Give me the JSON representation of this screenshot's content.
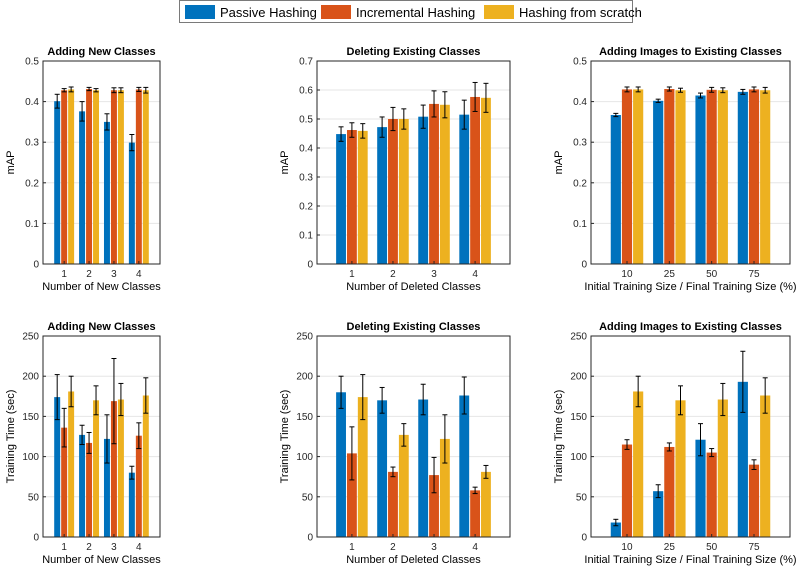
{
  "colors": {
    "passive": "#0072bd",
    "incremental": "#d95319",
    "scratch": "#edb120",
    "grid": "#e6e6e6",
    "axis": "#262626"
  },
  "legend": {
    "passive": "Passive Hashing",
    "incremental": "Incremental Hashing",
    "scratch": "Hashing from scratch"
  },
  "chart_data": [
    {
      "type": "bar",
      "title": "Adding New Classes",
      "xlabel": "Number of New Classes",
      "ylabel": "mAP",
      "categories": [
        "1",
        "2",
        "3",
        "4"
      ],
      "ylim": [
        0,
        0.5
      ],
      "yticks": [
        "0",
        "0.1",
        "0.2",
        "0.3",
        "0.4",
        "0.5"
      ],
      "grid": true,
      "series": [
        {
          "name": "Passive Hashing",
          "values": [
            0.401,
            0.376,
            0.35,
            0.299
          ],
          "errors": [
            0.017,
            0.024,
            0.02,
            0.02
          ]
        },
        {
          "name": "Incremental Hashing",
          "values": [
            0.428,
            0.431,
            0.428,
            0.43
          ],
          "errors": [
            0.004,
            0.004,
            0.006,
            0.005
          ]
        },
        {
          "name": "Hashing from scratch",
          "values": [
            0.43,
            0.428,
            0.428,
            0.428
          ],
          "errors": [
            0.006,
            0.004,
            0.006,
            0.007
          ]
        }
      ]
    },
    {
      "type": "bar",
      "title": "Deleting Existing Classes",
      "xlabel": "Number of Deleted Classes",
      "ylabel": "mAP",
      "categories": [
        "1",
        "2",
        "3",
        "4"
      ],
      "ylim": [
        0,
        0.7
      ],
      "yticks": [
        "0",
        "0.1",
        "0.2",
        "0.3",
        "0.4",
        "0.5",
        "0.6",
        "0.7"
      ],
      "grid": true,
      "series": [
        {
          "name": "Passive Hashing",
          "values": [
            0.448,
            0.472,
            0.508,
            0.515
          ],
          "errors": [
            0.025,
            0.035,
            0.04,
            0.05
          ]
        },
        {
          "name": "Incremental Hashing",
          "values": [
            0.462,
            0.5,
            0.552,
            0.576
          ],
          "errors": [
            0.025,
            0.04,
            0.045,
            0.05
          ]
        },
        {
          "name": "Hashing from scratch",
          "values": [
            0.459,
            0.5,
            0.549,
            0.573
          ],
          "errors": [
            0.025,
            0.035,
            0.045,
            0.05
          ]
        }
      ]
    },
    {
      "type": "bar",
      "title": "Adding Images to Existing Classes",
      "xlabel": "Initial Training Size / Final Training Size (%)",
      "ylabel": "mAP",
      "categories": [
        "10",
        "25",
        "50",
        "75"
      ],
      "ylim": [
        0,
        0.5
      ],
      "yticks": [
        "0",
        "0.1",
        "0.2",
        "0.3",
        "0.4",
        "0.5"
      ],
      "grid": true,
      "series": [
        {
          "name": "Passive Hashing",
          "values": [
            0.367,
            0.402,
            0.415,
            0.424
          ],
          "errors": [
            0.004,
            0.004,
            0.006,
            0.006
          ]
        },
        {
          "name": "Incremental Hashing",
          "values": [
            0.43,
            0.431,
            0.429,
            0.43
          ],
          "errors": [
            0.006,
            0.005,
            0.006,
            0.006
          ]
        },
        {
          "name": "Hashing from scratch",
          "values": [
            0.43,
            0.428,
            0.428,
            0.428
          ],
          "errors": [
            0.006,
            0.005,
            0.006,
            0.007
          ]
        }
      ]
    },
    {
      "type": "bar",
      "title": "Adding New Classes",
      "xlabel": "Number of New Classes",
      "ylabel": "Training Time (sec)",
      "categories": [
        "1",
        "2",
        "3",
        "4"
      ],
      "ylim": [
        0,
        250
      ],
      "yticks": [
        "0",
        "50",
        "100",
        "150",
        "200",
        "250"
      ],
      "grid": true,
      "series": [
        {
          "name": "Passive Hashing",
          "values": [
            174,
            127,
            122,
            80
          ],
          "errors": [
            28,
            12,
            30,
            8
          ]
        },
        {
          "name": "Incremental Hashing",
          "values": [
            136,
            117,
            169,
            126
          ],
          "errors": [
            24,
            13,
            53,
            16
          ]
        },
        {
          "name": "Hashing from scratch",
          "values": [
            181,
            170,
            171,
            176
          ],
          "errors": [
            19,
            18,
            20,
            22
          ]
        }
      ]
    },
    {
      "type": "bar",
      "title": "Deleting Existing Classes",
      "xlabel": "Number of Deleted Classes",
      "ylabel": "Training Time (sec)",
      "categories": [
        "1",
        "2",
        "3",
        "4"
      ],
      "ylim": [
        0,
        250
      ],
      "yticks": [
        "0",
        "50",
        "100",
        "150",
        "200",
        "250"
      ],
      "grid": true,
      "series": [
        {
          "name": "Passive Hashing",
          "values": [
            180,
            170,
            171,
            176
          ],
          "errors": [
            20,
            16,
            19,
            23
          ]
        },
        {
          "name": "Incremental Hashing",
          "values": [
            104,
            81,
            77,
            58
          ],
          "errors": [
            33,
            6,
            22,
            4
          ]
        },
        {
          "name": "Hashing from scratch",
          "values": [
            174,
            127,
            122,
            81
          ],
          "errors": [
            28,
            14,
            30,
            8
          ]
        }
      ]
    },
    {
      "type": "bar",
      "title": "Adding Images to Existing Classes",
      "xlabel": "Initial Training Size / Final Training Size (%)",
      "ylabel": "Training Time (sec)",
      "categories": [
        "10",
        "25",
        "50",
        "75"
      ],
      "ylim": [
        0,
        250
      ],
      "yticks": [
        "0",
        "50",
        "100",
        "150",
        "200",
        "250"
      ],
      "grid": true,
      "series": [
        {
          "name": "Passive Hashing",
          "values": [
            18,
            57,
            121,
            193
          ],
          "errors": [
            4,
            8,
            20,
            38
          ]
        },
        {
          "name": "Incremental Hashing",
          "values": [
            115,
            112,
            105,
            90
          ],
          "errors": [
            6,
            5,
            5,
            6
          ]
        },
        {
          "name": "Hashing from scratch",
          "values": [
            181,
            170,
            171,
            176
          ],
          "errors": [
            19,
            18,
            20,
            22
          ]
        }
      ]
    }
  ]
}
